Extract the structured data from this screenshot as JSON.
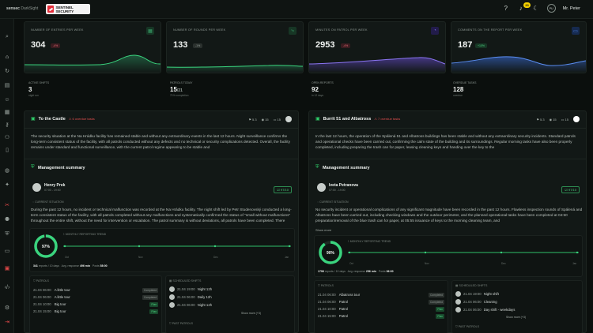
{
  "header": {
    "brand": "sensec",
    "brand_sub": "DarkSight",
    "logo_text": "SENTINEL SECURITY",
    "notifications": "33",
    "user_initials": "PU",
    "user_name": "Mr. Peter"
  },
  "colors": {
    "accent": "#4cd37f",
    "danger": "#e34f4f",
    "bg": "#0b0f0d",
    "panel": "#121816"
  },
  "stats": [
    {
      "title": "Number of entries per week",
      "value": "304",
      "delta": "-4%",
      "tone": "red",
      "icon": "grid-icon",
      "color": "#3aa36b"
    },
    {
      "title": "Number of rounds per week",
      "value": "133",
      "delta": "-1%",
      "tone": "gray",
      "icon": "route-icon",
      "color": "#3aa36b"
    },
    {
      "title": "Minutes on patrol per week",
      "value": "2953",
      "delta": "-4%",
      "tone": "red",
      "icon": "clock-icon",
      "color": "#6b4fd8"
    },
    {
      "title": "Comments on the report per week",
      "value": "187",
      "delta": "+10%",
      "tone": "green",
      "icon": "comment-icon",
      "color": "#3b6fe0"
    }
  ],
  "mini_stats": [
    {
      "title": "Active shifts",
      "value": "3",
      "sub": "night run"
    },
    {
      "title": "Patrols today",
      "value": "15",
      "suffix": "/21",
      "sub": "71% completion"
    },
    {
      "title": "Open reports",
      "value": "92",
      "sub": "in 12 days"
    },
    {
      "title": "Overdue tasks",
      "value": "128",
      "sub": "overdue"
    }
  ],
  "left": {
    "site": "To the Castle",
    "overdue": "6 overdue tasks",
    "meta": [
      "5.3",
      "15",
      "15"
    ],
    "paragraph": "The security situation at the Na Hrádku facility has remained stable and without any extraordinary events in the last 12 hours. Night surveillance confirms the long-term consistent status of the facility, with all patrols conducted without any defects and no technical or security complications detected. Overall, the facility remains under standard and functional surveillance, with the current patrol regime appearing to be stable and",
    "summary_title": "Management summary",
    "person": "Henry Prek",
    "person_time": "07:00 - 19:00",
    "score": "97/10",
    "situation_label": "Current situation",
    "situation": "During the past 12 hours, no incident or technical malfunction was recorded at the Na Hrádku facility. The night shift led by Petr Studenovský conducted a long-term consistent status of the facility, with all patrols completed without any malfunctions and systematically confirmed the status of \"small without malfunctions\" throughout the entire shift, without the need for intervention or escalation. The patrol summary is without deviations, all patrols have been completed. There",
    "trend_label": "Monthly reporting trend",
    "ring_pct": 97,
    "ring_text": "97%",
    "axis": [
      "Oct",
      "Nov",
      "Dec",
      "Jan"
    ],
    "foot": {
      "reports_label": "reports / 10 days",
      "reports": "341",
      "avg_label": "Avg. response",
      "avg": "496 min",
      "posts_label": "Posts",
      "posts": "58:00"
    },
    "patrols_title": "Patrols",
    "patrols": [
      {
        "date": "21.04 06:00",
        "name": "A little tour",
        "status": "Completed",
        "tone": "gray"
      },
      {
        "date": "21.04 06:00",
        "name": "A little tour",
        "status": "Completed",
        "tone": "gray"
      },
      {
        "date": "21.04 10:00",
        "name": "Big tour",
        "status": "Plan",
        "tone": "green"
      },
      {
        "date": "21.04 15:00",
        "name": "Big tour",
        "status": "Plan",
        "tone": "green"
      }
    ],
    "shifts_title": "Scheduled shifts",
    "shifts": [
      {
        "date": "21.04 19:00",
        "name": "Night 12h"
      },
      {
        "date": "21.04 06:00",
        "name": "Daily 12h"
      },
      {
        "date": "21.04 06:00",
        "name": "Night 12h"
      }
    ],
    "shifts_more": "Show more (+3)",
    "past_title": "Past patrols"
  },
  "right": {
    "site": "Burrit 51 and Albatross",
    "overdue": "7 overdue tasks",
    "meta": [
      "5.3",
      "15",
      "15"
    ],
    "paragraph": "In the last 12 hours, the operation of the Spálená 51 and Albatross buildings has been stable and without any extraordinary security incidents. Standard patrols and operational checks have been carried out, confirming the calm state of the building and its surroundings. Regular morning tasks have also been properly completed, including preparing the trash can for paper, leasing cleaning keys and handing over the key to the",
    "summary_title": "Management summary",
    "person": "Iveta Petranova",
    "person_time": "07:00 - 19:00",
    "score": "97/10",
    "situation_label": "Current situation",
    "situation": "No security incident or operational complications of any significant magnitude have been recorded in the past 12 hours. Flawless inspection rounds of Spálená and Albatross have been carried out, including checking windows and the outdoor perimeter, and the planned operational tasks have been completed at 04:50 preparation/removal of the blue trash can for paper, at 05:55 issuance of keys to the morning cleaning team, and",
    "show_more": "Show more",
    "trend_label": "Monthly reporting trend",
    "ring_pct": 90,
    "ring_text": "90%",
    "axis": [
      "Oct",
      "Nov",
      "Dec",
      "Jan"
    ],
    "foot": {
      "reports_label": "reports / 10 days",
      "reports": "1796",
      "avg_label": "Avg. response",
      "avg": "256 min",
      "posts_label": "Posts",
      "posts": "06:00"
    },
    "patrols_title": "Patrols",
    "patrols": [
      {
        "date": "21.04 06:00",
        "name": "Albatross tour",
        "status": "Completed",
        "tone": "gray"
      },
      {
        "date": "21.04 06:00",
        "name": "Patrol",
        "status": "Completed",
        "tone": "gray"
      },
      {
        "date": "21.04 10:00",
        "name": "Patrol",
        "status": "Plan",
        "tone": "green"
      },
      {
        "date": "21.04 15:00",
        "name": "Patrol",
        "status": "Plan",
        "tone": "green"
      }
    ],
    "shifts_title": "Scheduled shifts",
    "shifts": [
      {
        "date": "21.04 19:00",
        "name": "Night shift"
      },
      {
        "date": "21.04 06:00",
        "name": "Cleaning"
      },
      {
        "date": "21.04 06:00",
        "name": "Day shift - weekdays"
      }
    ],
    "shifts_more": "Show more (+3)",
    "past_title": "Past patrols"
  }
}
